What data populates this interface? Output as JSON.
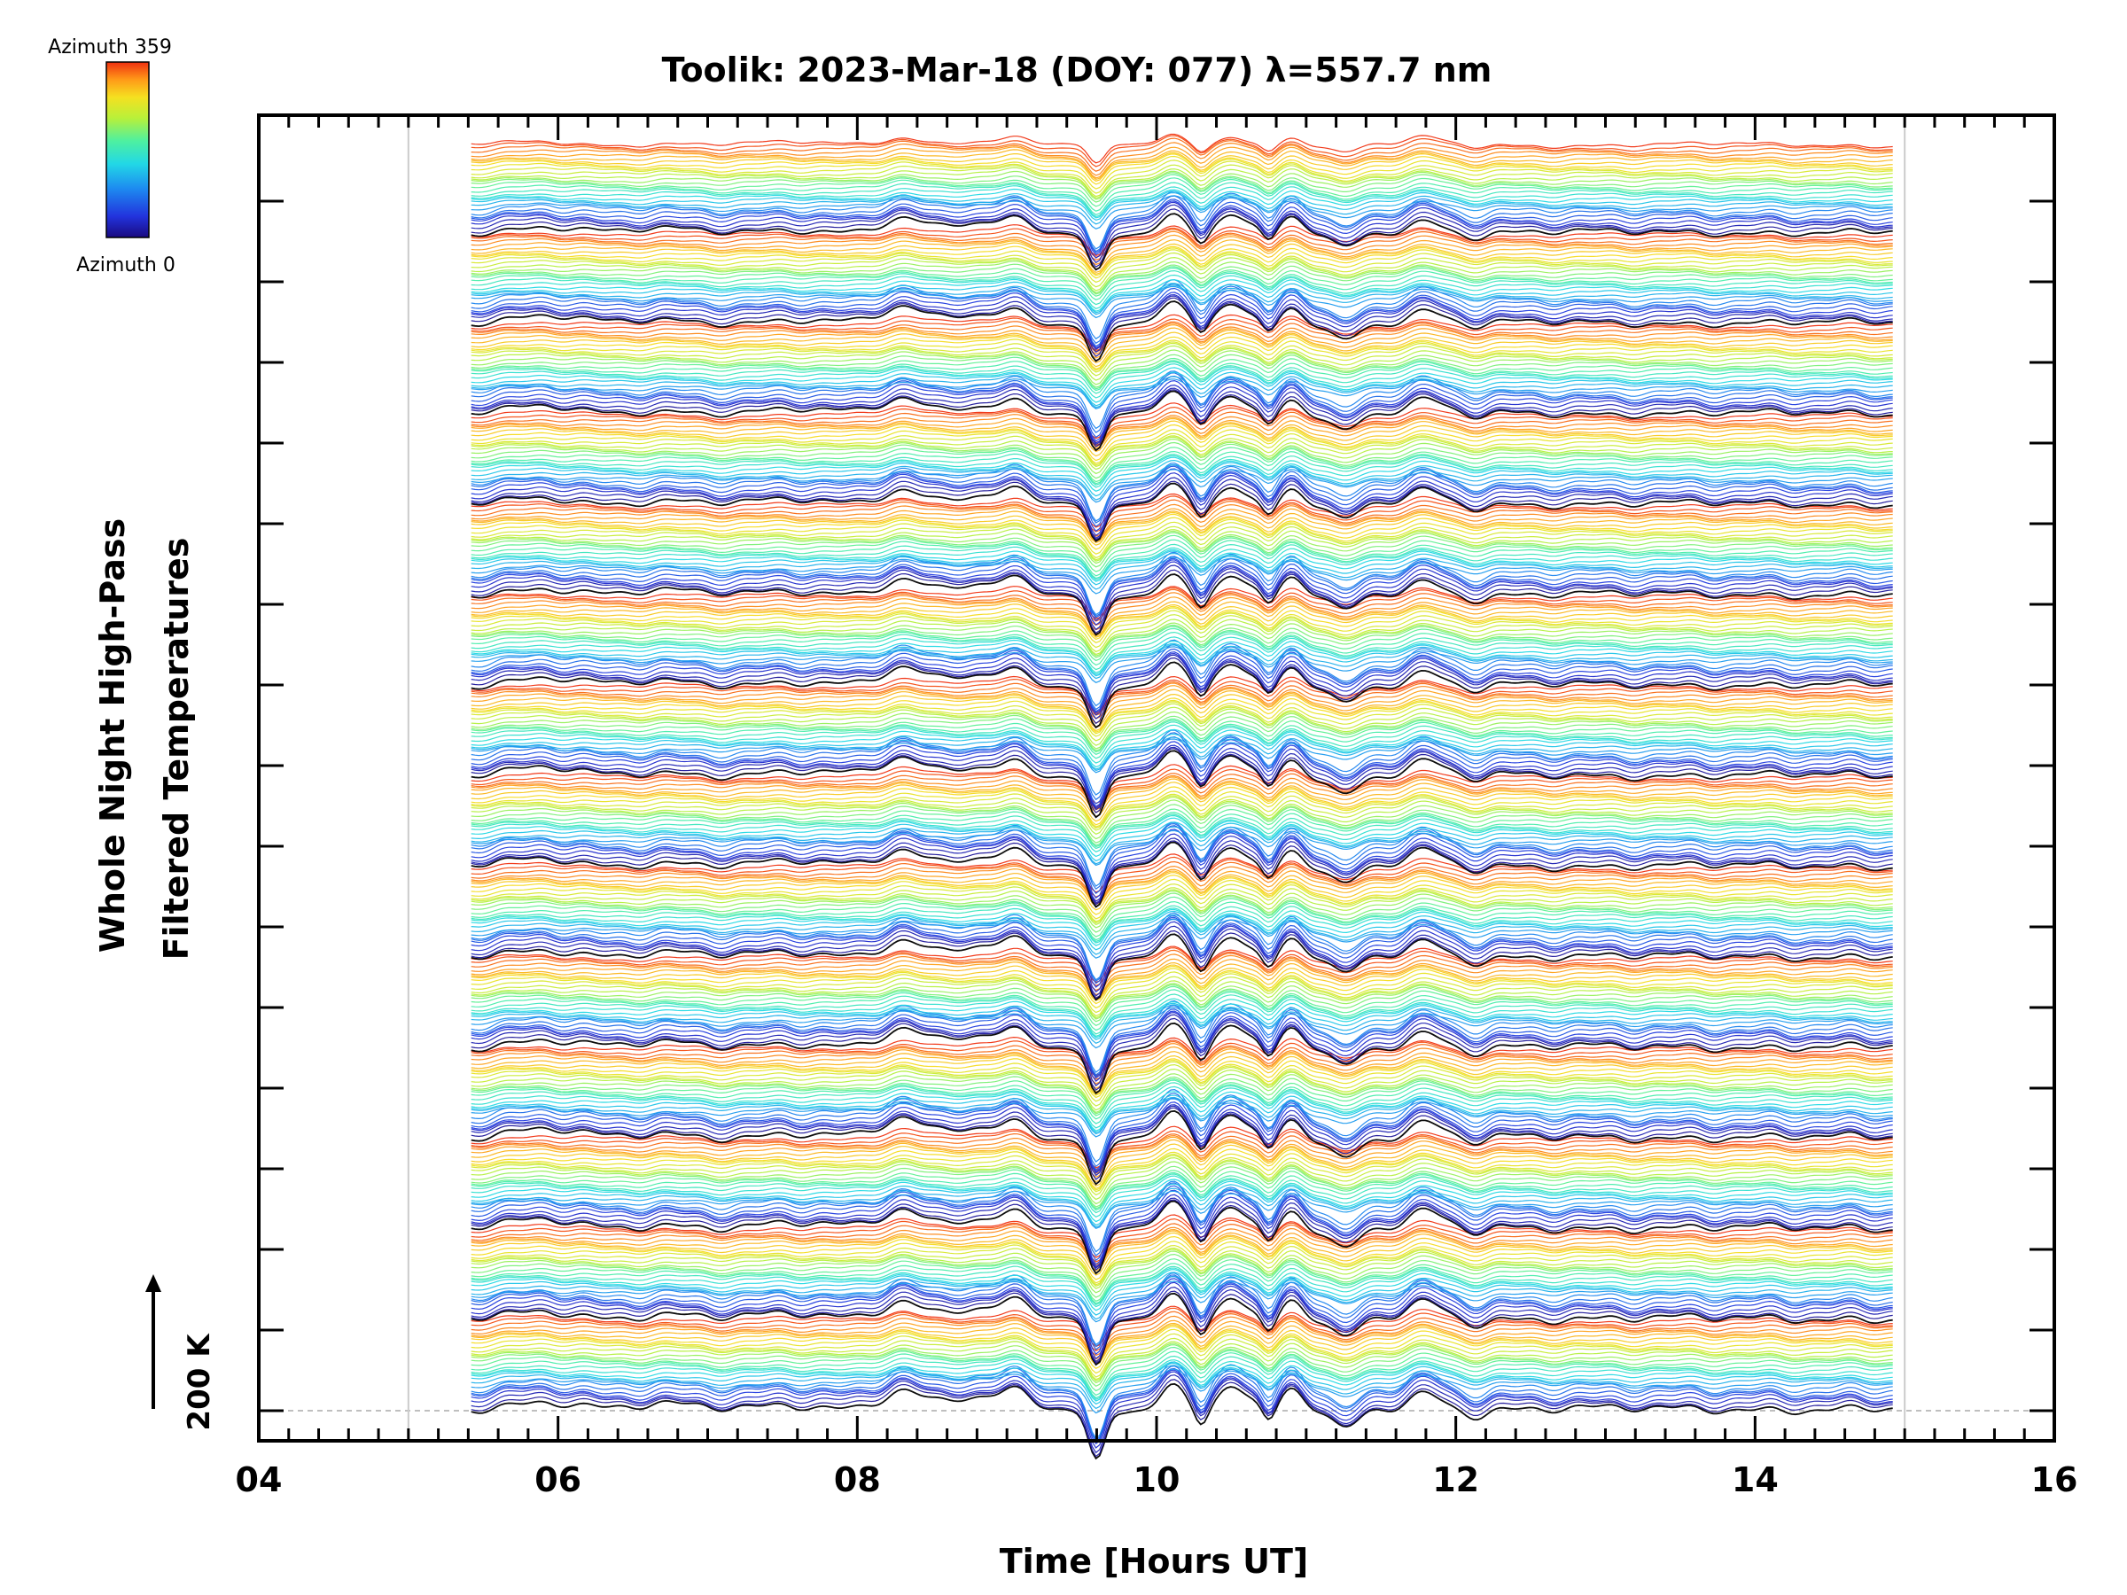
{
  "chart_data": {
    "type": "line",
    "title": "Toolik: 2023-Mar-18 (DOY: 077) λ=557.7 nm",
    "xlabel": "Time [Hours UT]",
    "ylabel_line1": "Whole Night High-Pass",
    "ylabel_line2": "Filtered Temperatures",
    "xlim": [
      4,
      16
    ],
    "x_ticks": [
      "04",
      "06",
      "08",
      "10",
      "12",
      "14",
      "16"
    ],
    "x_tick_values": [
      4,
      6,
      8,
      10,
      12,
      14,
      16
    ],
    "data_time_range": [
      5.42,
      14.92
    ],
    "reference_line_hours": [
      5.0,
      15.0
    ],
    "grid": false,
    "scale_bar_label": "200 K",
    "scale_bar_kelvin": 200,
    "colorbar": {
      "top_label": "Azimuth 359",
      "bottom_label": "Azimuth 0",
      "azimuth_range": [
        0,
        359
      ],
      "colormap": [
        "#1a0a80",
        "#2233dd",
        "#1d8bf0",
        "#22d8e6",
        "#4ef0a0",
        "#b8f03a",
        "#f5e020",
        "#ff9a18",
        "#f03010"
      ]
    },
    "series_description_count": 14,
    "traces_per_group": 30,
    "common_features_hours": {
      "deep_minimum": 9.6,
      "peaks": [
        5.9,
        8.3,
        9.0,
        10.1,
        10.5,
        10.9,
        11.8
      ]
    }
  }
}
